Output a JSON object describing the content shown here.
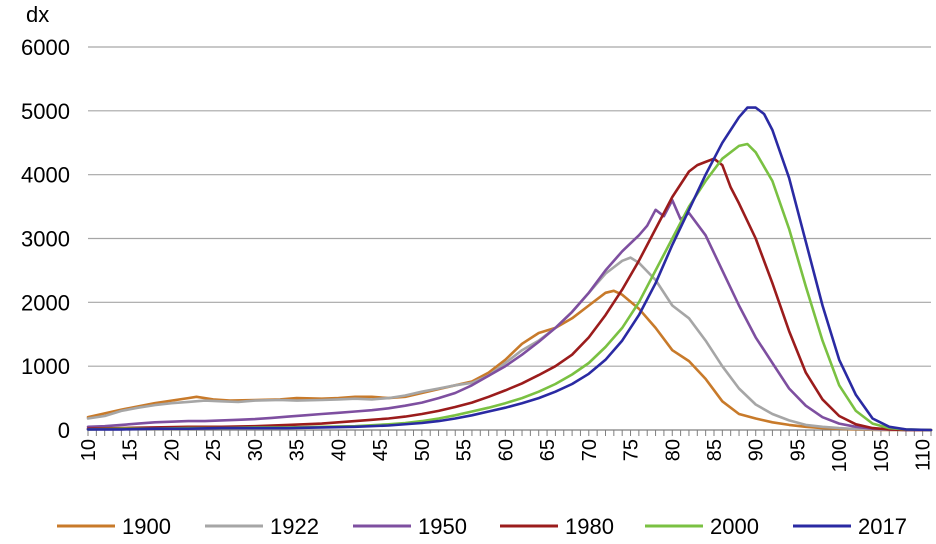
{
  "chart_data": {
    "type": "line",
    "title": "",
    "xlabel": "",
    "ylabel": "dx",
    "xlim": [
      10,
      111
    ],
    "ylim": [
      0,
      6000
    ],
    "y_ticks": [
      0,
      1000,
      2000,
      3000,
      4000,
      5000,
      6000
    ],
    "x_ticks": [
      10,
      15,
      20,
      25,
      30,
      35,
      40,
      45,
      50,
      55,
      60,
      65,
      70,
      75,
      80,
      85,
      90,
      95,
      100,
      105,
      110
    ],
    "grid": "horizontal",
    "legend_position": "bottom",
    "series": [
      {
        "name": "1900",
        "color": "#c87a2a",
        "x": [
          10,
          12,
          14,
          16,
          18,
          20,
          22,
          23,
          25,
          27,
          30,
          33,
          35,
          38,
          40,
          42,
          44,
          46,
          48,
          50,
          52,
          54,
          56,
          58,
          60,
          62,
          64,
          66,
          68,
          70,
          72,
          73,
          74,
          76,
          78,
          80,
          82,
          84,
          86,
          88,
          90,
          92,
          94,
          96,
          98,
          100,
          102,
          105,
          108,
          111
        ],
        "y": [
          200,
          260,
          320,
          370,
          420,
          460,
          500,
          520,
          480,
          460,
          470,
          480,
          500,
          490,
          500,
          520,
          520,
          500,
          520,
          580,
          640,
          700,
          760,
          900,
          1100,
          1350,
          1520,
          1600,
          1750,
          1950,
          2150,
          2180,
          2120,
          1900,
          1600,
          1250,
          1080,
          800,
          450,
          250,
          180,
          120,
          80,
          50,
          30,
          20,
          10,
          0,
          0,
          0
        ]
      },
      {
        "name": "1922",
        "color": "#a6a6a6",
        "x": [
          10,
          12,
          14,
          16,
          18,
          20,
          22,
          24,
          26,
          28,
          30,
          33,
          35,
          38,
          40,
          42,
          44,
          46,
          48,
          50,
          52,
          54,
          56,
          58,
          60,
          62,
          64,
          66,
          68,
          70,
          72,
          74,
          75,
          76,
          78,
          80,
          82,
          84,
          86,
          88,
          90,
          92,
          94,
          96,
          98,
          100,
          102,
          105,
          108,
          111
        ],
        "y": [
          180,
          220,
          300,
          350,
          390,
          420,
          440,
          460,
          450,
          440,
          460,
          470,
          460,
          470,
          480,
          490,
          480,
          500,
          540,
          600,
          650,
          700,
          740,
          850,
          1050,
          1250,
          1400,
          1600,
          1850,
          2150,
          2450,
          2650,
          2700,
          2620,
          2350,
          1950,
          1750,
          1400,
          1000,
          650,
          400,
          250,
          150,
          80,
          50,
          30,
          15,
          5,
          0,
          0
        ]
      },
      {
        "name": "1950",
        "color": "#7e4fa0",
        "x": [
          10,
          12,
          14,
          16,
          18,
          20,
          22,
          24,
          26,
          28,
          30,
          32,
          34,
          36,
          38,
          40,
          42,
          44,
          46,
          48,
          50,
          52,
          54,
          56,
          58,
          60,
          62,
          64,
          66,
          68,
          70,
          72,
          74,
          76,
          77,
          78,
          79,
          80,
          81,
          82,
          84,
          86,
          88,
          90,
          92,
          94,
          96,
          98,
          100,
          102,
          104,
          106,
          108,
          111
        ],
        "y": [
          50,
          60,
          80,
          100,
          120,
          130,
          140,
          140,
          150,
          160,
          170,
          190,
          210,
          230,
          250,
          270,
          290,
          310,
          340,
          380,
          430,
          500,
          580,
          700,
          850,
          1000,
          1180,
          1380,
          1600,
          1850,
          2150,
          2500,
          2800,
          3050,
          3200,
          3450,
          3350,
          3600,
          3300,
          3400,
          3050,
          2500,
          1950,
          1450,
          1050,
          650,
          380,
          200,
          100,
          50,
          20,
          10,
          0,
          0
        ]
      },
      {
        "name": "1980",
        "color": "#9b1c1c",
        "x": [
          10,
          14,
          18,
          22,
          26,
          30,
          34,
          38,
          40,
          42,
          44,
          46,
          48,
          50,
          52,
          54,
          56,
          58,
          60,
          62,
          64,
          66,
          68,
          70,
          72,
          74,
          76,
          78,
          80,
          82,
          83,
          84,
          85,
          86,
          87,
          88,
          90,
          92,
          94,
          96,
          98,
          100,
          102,
          104,
          106,
          108,
          111
        ],
        "y": [
          20,
          30,
          40,
          50,
          50,
          60,
          80,
          100,
          120,
          140,
          160,
          180,
          210,
          250,
          300,
          360,
          430,
          520,
          620,
          730,
          860,
          1000,
          1180,
          1450,
          1800,
          2200,
          2650,
          3150,
          3650,
          4050,
          4150,
          4200,
          4250,
          4150,
          3800,
          3550,
          3000,
          2300,
          1550,
          900,
          480,
          220,
          90,
          30,
          10,
          0,
          0
        ]
      },
      {
        "name": "2000",
        "color": "#7ac142",
        "x": [
          10,
          14,
          18,
          22,
          26,
          30,
          34,
          38,
          42,
          46,
          48,
          50,
          52,
          54,
          56,
          58,
          60,
          62,
          64,
          66,
          68,
          70,
          72,
          74,
          76,
          78,
          80,
          82,
          84,
          86,
          88,
          89,
          90,
          92,
          94,
          96,
          98,
          100,
          102,
          104,
          106,
          108,
          111
        ],
        "y": [
          10,
          20,
          20,
          30,
          30,
          40,
          40,
          50,
          60,
          90,
          110,
          140,
          180,
          230,
          290,
          350,
          420,
          500,
          600,
          720,
          870,
          1050,
          1300,
          1600,
          2000,
          2500,
          3000,
          3500,
          3900,
          4250,
          4450,
          4480,
          4350,
          3900,
          3150,
          2250,
          1400,
          700,
          300,
          100,
          30,
          10,
          0
        ]
      },
      {
        "name": "2017",
        "color": "#2a2aa3",
        "x": [
          10,
          14,
          18,
          22,
          26,
          30,
          34,
          38,
          42,
          46,
          50,
          52,
          54,
          56,
          58,
          60,
          62,
          64,
          66,
          68,
          70,
          72,
          74,
          76,
          78,
          80,
          82,
          84,
          86,
          88,
          89,
          90,
          91,
          92,
          94,
          96,
          98,
          100,
          102,
          104,
          106,
          108,
          111
        ],
        "y": [
          10,
          10,
          20,
          20,
          30,
          30,
          30,
          40,
          50,
          70,
          110,
          140,
          180,
          230,
          290,
          350,
          420,
          500,
          600,
          720,
          880,
          1100,
          1400,
          1800,
          2300,
          2900,
          3450,
          4000,
          4500,
          4900,
          5050,
          5050,
          4950,
          4700,
          3950,
          2950,
          1950,
          1100,
          550,
          180,
          50,
          10,
          0
        ]
      }
    ]
  }
}
